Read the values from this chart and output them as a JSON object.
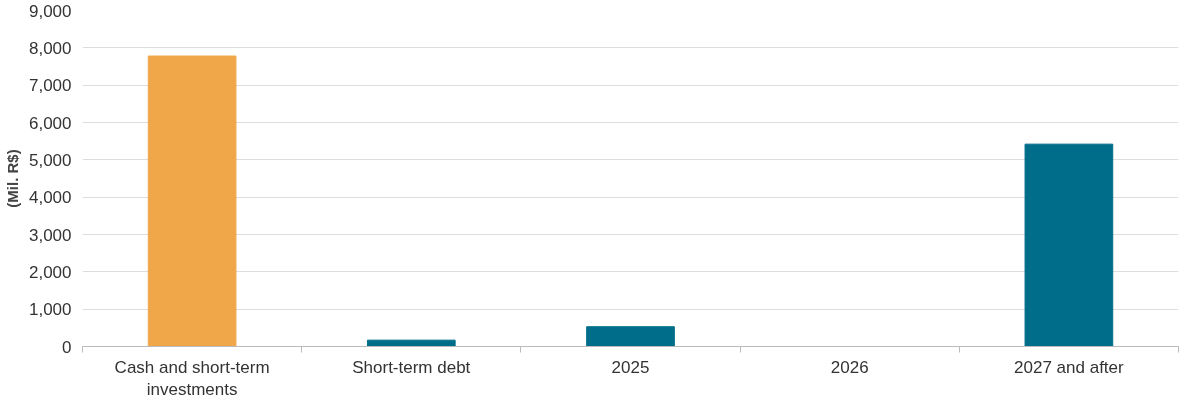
{
  "chart_data": {
    "type": "bar",
    "ylabel": "(Mil. R$)",
    "categories": [
      "Cash and short-term investments",
      "Short-term debt",
      "2025",
      "2026",
      "2027 and after"
    ],
    "values": [
      7780,
      170,
      530,
      0,
      5420
    ],
    "colors": [
      "#f0a74a",
      "#006e8a",
      "#006e8a",
      "#006e8a",
      "#006e8a"
    ],
    "ylim": [
      0,
      9000
    ],
    "yticks": [
      {
        "value": 0,
        "label": "0"
      },
      {
        "value": 1000,
        "label": "1,000"
      },
      {
        "value": 2000,
        "label": "2,000"
      },
      {
        "value": 3000,
        "label": "3,000"
      },
      {
        "value": 4000,
        "label": "4,000"
      },
      {
        "value": 5000,
        "label": "5,000"
      },
      {
        "value": 6000,
        "label": "6,000"
      },
      {
        "value": 7000,
        "label": "7,000"
      },
      {
        "value": 8000,
        "label": "8,000"
      },
      {
        "value": 9000,
        "label": "9,000"
      }
    ],
    "grid": "y"
  }
}
